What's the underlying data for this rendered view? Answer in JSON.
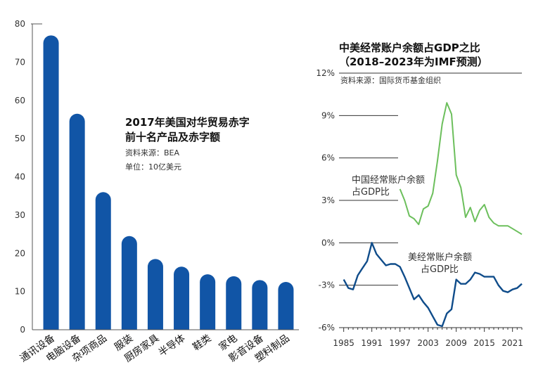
{
  "chart_data": [
    {
      "type": "bar",
      "title_lines": [
        "2017年美国对华贸易赤字",
        "前十名产品及赤字额"
      ],
      "source": "资料来源：BEA",
      "unit": "单位：10亿美元",
      "categories": [
        "通讯设备",
        "电脑设备",
        "杂项商品",
        "服装",
        "厨房家具",
        "半导体",
        "鞋类",
        "家电",
        "影音设备",
        "塑料制品"
      ],
      "values": [
        77,
        56.5,
        36,
        24.5,
        18.5,
        16.5,
        14.5,
        14,
        13,
        12.5
      ],
      "yticks": [
        0,
        10,
        20,
        30,
        40,
        50,
        60,
        70,
        80
      ],
      "ylim": [
        0,
        80
      ],
      "bar_color": "#1155a6"
    },
    {
      "type": "line",
      "title_lines": [
        "中美经常账户余额占GDP之比",
        "（2018–2023年为IMF预测）"
      ],
      "source": "资料来源：国际货币基金组织",
      "x_ticks": [
        "1985",
        "1991",
        "1997",
        "2003",
        "2009",
        "2015",
        "2021"
      ],
      "y_ticks": [
        "12%",
        "9%",
        "6%",
        "3%",
        "0%",
        "-3%",
        "-6%"
      ],
      "y_tick_values": [
        12,
        9,
        6,
        3,
        0,
        -3,
        -6
      ],
      "ylim": [
        -6,
        12
      ],
      "xlim": [
        1984,
        2023
      ],
      "series": [
        {
          "name": "中国经常账户余额占GDP比",
          "label_lines": [
            "中国经常账户余额",
            "占GDP比"
          ],
          "color": "#6cbf5c",
          "x": [
            1997,
            1998,
            1999,
            2000,
            2001,
            2002,
            2003,
            2004,
            2005,
            2006,
            2007,
            2008,
            2009,
            2010,
            2011,
            2012,
            2013,
            2014,
            2015,
            2016,
            2017,
            2018,
            2019,
            2020,
            2021,
            2022,
            2023
          ],
          "y": [
            3.8,
            3.0,
            1.9,
            1.7,
            1.3,
            2.4,
            2.6,
            3.5,
            5.8,
            8.4,
            9.9,
            9.1,
            4.8,
            3.9,
            1.8,
            2.5,
            1.5,
            2.3,
            2.7,
            1.8,
            1.4,
            1.2,
            1.2,
            1.2,
            1.0,
            0.8,
            0.6
          ]
        },
        {
          "name": "美经常账户余额占GDP比",
          "label_lines": [
            "美经常账户余额",
            "占GDP比"
          ],
          "color": "#0f4c8a",
          "x": [
            1985,
            1986,
            1987,
            1988,
            1989,
            1990,
            1991,
            1992,
            1993,
            1994,
            1995,
            1996,
            1997,
            1998,
            1999,
            2000,
            2001,
            2002,
            2003,
            2004,
            2005,
            2006,
            2007,
            2008,
            2009,
            2010,
            2011,
            2012,
            2013,
            2014,
            2015,
            2016,
            2017,
            2018,
            2019,
            2020,
            2021,
            2022,
            2023
          ],
          "y": [
            -2.6,
            -3.2,
            -3.3,
            -2.3,
            -1.8,
            -1.3,
            0.0,
            -0.8,
            -1.2,
            -1.6,
            -1.5,
            -1.5,
            -1.7,
            -2.4,
            -3.2,
            -4.0,
            -3.7,
            -4.2,
            -4.6,
            -5.2,
            -5.8,
            -5.9,
            -5.0,
            -4.7,
            -2.6,
            -2.9,
            -2.9,
            -2.6,
            -2.1,
            -2.2,
            -2.4,
            -2.4,
            -2.4,
            -3.0,
            -3.4,
            -3.5,
            -3.3,
            -3.2,
            -2.9
          ]
        }
      ]
    }
  ]
}
